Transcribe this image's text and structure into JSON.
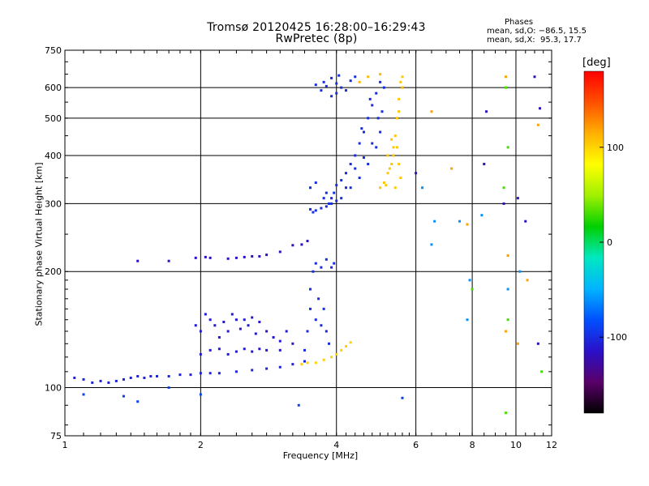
{
  "chart_data": {
    "type": "scatter",
    "title_line1": "Tromsø 20120425 16:28:00–16:29:43",
    "title_line2": "RwPretec (8p)",
    "xlabel": "Frequency [MHz]",
    "ylabel": "Stationary phase Virtual Height [km]",
    "x_scale": "log",
    "y_scale": "log",
    "xlim": [
      1,
      12
    ],
    "ylim": [
      75,
      750
    ],
    "x_ticks": [
      1,
      2,
      4,
      6,
      8,
      10,
      12
    ],
    "y_ticks": [
      75,
      100,
      200,
      300,
      400,
      500,
      600,
      750
    ],
    "grid": true,
    "stats": {
      "heading": "Phases",
      "line1": "mean, sd,O: −86.5, 15.5",
      "line2": "mean, sd,X:  95.3, 17.7"
    },
    "colorbar": {
      "unit": "[deg]",
      "range": [
        -180,
        180
      ],
      "ticks": [
        100,
        0,
        -100
      ],
      "colors": [
        "#000000",
        "#5a006a",
        "#2a10c8",
        "#0050ff",
        "#00b4ff",
        "#00e8c0",
        "#00d000",
        "#a0f000",
        "#ffff00",
        "#ffb000",
        "#ff5000",
        "#ff0000"
      ]
    },
    "series": [
      {
        "phase_deg": -105,
        "points": [
          [
            1.05,
            106
          ],
          [
            1.1,
            105
          ],
          [
            1.15,
            103
          ],
          [
            1.2,
            104
          ],
          [
            1.25,
            103
          ],
          [
            1.3,
            104
          ],
          [
            1.35,
            105
          ],
          [
            1.4,
            106
          ],
          [
            1.45,
            107
          ],
          [
            1.5,
            106
          ],
          [
            1.55,
            107
          ],
          [
            1.6,
            107
          ],
          [
            1.7,
            107
          ],
          [
            1.8,
            108
          ],
          [
            1.9,
            108
          ],
          [
            2.0,
            109
          ],
          [
            2.1,
            109
          ],
          [
            2.2,
            109
          ],
          [
            2.4,
            110
          ],
          [
            2.6,
            111
          ],
          [
            2.8,
            112
          ],
          [
            3.0,
            113
          ],
          [
            3.2,
            115
          ],
          [
            3.4,
            117
          ]
        ]
      },
      {
        "phase_deg": -115,
        "points": [
          [
            1.45,
            213
          ],
          [
            1.7,
            213
          ],
          [
            1.95,
            217
          ],
          [
            2.05,
            218
          ],
          [
            2.1,
            217
          ],
          [
            2.3,
            216
          ],
          [
            2.4,
            217
          ],
          [
            2.5,
            218
          ],
          [
            2.6,
            219
          ],
          [
            2.7,
            219
          ],
          [
            2.8,
            221
          ],
          [
            3.0,
            225
          ],
          [
            3.2,
            234
          ],
          [
            3.35,
            235
          ],
          [
            3.45,
            240
          ]
        ]
      },
      {
        "phase_deg": -110,
        "points": [
          [
            1.95,
            145
          ],
          [
            2.0,
            140
          ],
          [
            2.05,
            155
          ],
          [
            2.1,
            150
          ],
          [
            2.15,
            145
          ],
          [
            2.2,
            135
          ],
          [
            2.25,
            148
          ],
          [
            2.3,
            140
          ],
          [
            2.35,
            155
          ],
          [
            2.4,
            150
          ],
          [
            2.45,
            142
          ],
          [
            2.5,
            150
          ],
          [
            2.55,
            145
          ],
          [
            2.6,
            152
          ],
          [
            2.65,
            138
          ],
          [
            2.7,
            148
          ],
          [
            2.8,
            140
          ],
          [
            2.9,
            135
          ],
          [
            3.0,
            132
          ],
          [
            3.1,
            140
          ],
          [
            3.2,
            130
          ],
          [
            2.0,
            122
          ],
          [
            2.1,
            125
          ],
          [
            2.2,
            126
          ],
          [
            2.3,
            122
          ],
          [
            2.4,
            124
          ],
          [
            2.5,
            126
          ],
          [
            2.6,
            124
          ],
          [
            2.7,
            126
          ],
          [
            2.8,
            125
          ],
          [
            3.0,
            125
          ]
        ]
      },
      {
        "phase_deg": -100,
        "points": [
          [
            3.4,
            125
          ],
          [
            3.45,
            140
          ],
          [
            3.5,
            160
          ],
          [
            3.5,
            180
          ],
          [
            3.55,
            200
          ],
          [
            3.6,
            150
          ],
          [
            3.65,
            170
          ],
          [
            3.7,
            145
          ],
          [
            3.75,
            160
          ],
          [
            3.8,
            140
          ],
          [
            3.85,
            130
          ],
          [
            3.6,
            210
          ],
          [
            3.7,
            205
          ],
          [
            3.8,
            215
          ],
          [
            3.9,
            205
          ],
          [
            3.95,
            210
          ]
        ]
      },
      {
        "phase_deg": 100,
        "points": [
          [
            3.35,
            115
          ],
          [
            3.45,
            116
          ],
          [
            3.6,
            116
          ],
          [
            3.75,
            118
          ],
          [
            3.9,
            120
          ],
          [
            4.0,
            122
          ],
          [
            4.1,
            125
          ],
          [
            4.2,
            128
          ],
          [
            4.3,
            131
          ]
        ]
      },
      {
        "phase_deg": -100,
        "points": [
          [
            3.5,
            290
          ],
          [
            3.55,
            285
          ],
          [
            3.6,
            288
          ],
          [
            3.7,
            292
          ],
          [
            3.8,
            295
          ],
          [
            3.85,
            300
          ],
          [
            3.9,
            310
          ],
          [
            3.95,
            320
          ],
          [
            4.0,
            335
          ],
          [
            4.1,
            345
          ],
          [
            4.2,
            360
          ],
          [
            4.3,
            380
          ],
          [
            4.4,
            400
          ],
          [
            4.5,
            430
          ],
          [
            4.6,
            460
          ],
          [
            4.7,
            500
          ],
          [
            4.8,
            540
          ],
          [
            4.9,
            580
          ],
          [
            5.0,
            620
          ],
          [
            3.5,
            330
          ],
          [
            3.6,
            340
          ],
          [
            3.75,
            310
          ],
          [
            3.9,
            300
          ],
          [
            4.1,
            310
          ],
          [
            4.3,
            330
          ],
          [
            4.5,
            350
          ],
          [
            4.7,
            380
          ],
          [
            4.9,
            420
          ],
          [
            5.0,
            460
          ],
          [
            5.05,
            520
          ],
          [
            5.1,
            600
          ],
          [
            4.8,
            430
          ],
          [
            4.6,
            395
          ],
          [
            4.4,
            370
          ],
          [
            4.2,
            330
          ],
          [
            4.0,
            305
          ],
          [
            3.8,
            320
          ],
          [
            4.55,
            470
          ],
          [
            4.75,
            560
          ],
          [
            4.95,
            500
          ]
        ]
      },
      {
        "phase_deg": -100,
        "points": [
          [
            3.6,
            610
          ],
          [
            3.7,
            590
          ],
          [
            3.75,
            620
          ],
          [
            3.8,
            605
          ],
          [
            3.9,
            635
          ],
          [
            4.0,
            615
          ],
          [
            4.05,
            645
          ],
          [
            4.1,
            600
          ],
          [
            4.2,
            590
          ],
          [
            4.3,
            625
          ],
          [
            4.4,
            640
          ],
          [
            4.0,
            580
          ],
          [
            3.9,
            570
          ]
        ]
      },
      {
        "phase_deg": 105,
        "points": [
          [
            5.0,
            330
          ],
          [
            5.1,
            340
          ],
          [
            5.2,
            360
          ],
          [
            5.3,
            380
          ],
          [
            5.35,
            400
          ],
          [
            5.4,
            450
          ],
          [
            5.45,
            500
          ],
          [
            5.5,
            560
          ],
          [
            5.55,
            620
          ],
          [
            5.6,
            640
          ],
          [
            5.2,
            400
          ],
          [
            5.3,
            440
          ],
          [
            5.45,
            420
          ],
          [
            5.5,
            380
          ],
          [
            5.55,
            350
          ],
          [
            5.4,
            330
          ],
          [
            5.15,
            335
          ],
          [
            5.25,
            370
          ],
          [
            5.35,
            420
          ],
          [
            5.5,
            520
          ]
        ]
      },
      {
        "phase_deg": 110,
        "points": [
          [
            4.5,
            620
          ],
          [
            4.7,
            640
          ],
          [
            5.0,
            650
          ],
          [
            5.6,
            600
          ]
        ]
      },
      {
        "phase_deg": -60,
        "points": [
          [
            6.6,
            270
          ],
          [
            6.5,
            235
          ],
          [
            7.5,
            270
          ],
          [
            7.9,
            190
          ],
          [
            8.4,
            280
          ],
          [
            9.6,
            180
          ],
          [
            10.2,
            200
          ],
          [
            6.2,
            330
          ],
          [
            7.8,
            150
          ]
        ]
      },
      {
        "phase_deg": -120,
        "points": [
          [
            6.0,
            360
          ],
          [
            8.5,
            380
          ],
          [
            9.4,
            300
          ],
          [
            10.1,
            310
          ],
          [
            11.2,
            130
          ],
          [
            11.0,
            640
          ],
          [
            10.5,
            270
          ],
          [
            8.6,
            520
          ],
          [
            11.3,
            530
          ]
        ]
      },
      {
        "phase_deg": 120,
        "points": [
          [
            6.5,
            520
          ],
          [
            7.2,
            370
          ],
          [
            9.5,
            640
          ],
          [
            9.6,
            220
          ],
          [
            10.6,
            190
          ],
          [
            11.2,
            480
          ],
          [
            9.5,
            140
          ],
          [
            7.8,
            265
          ],
          [
            10.1,
            130
          ]
        ]
      },
      {
        "phase_deg": 30,
        "points": [
          [
            9.5,
            600
          ],
          [
            9.6,
            420
          ],
          [
            9.4,
            330
          ],
          [
            9.6,
            150
          ],
          [
            8.0,
            180
          ],
          [
            11.4,
            110
          ],
          [
            9.5,
            86
          ]
        ]
      },
      {
        "phase_deg": -90,
        "points": [
          [
            1.1,
            96
          ],
          [
            1.35,
            95
          ],
          [
            1.45,
            92
          ],
          [
            1.7,
            100
          ],
          [
            2.0,
            96
          ],
          [
            3.3,
            90
          ],
          [
            5.6,
            94
          ]
        ]
      }
    ]
  }
}
